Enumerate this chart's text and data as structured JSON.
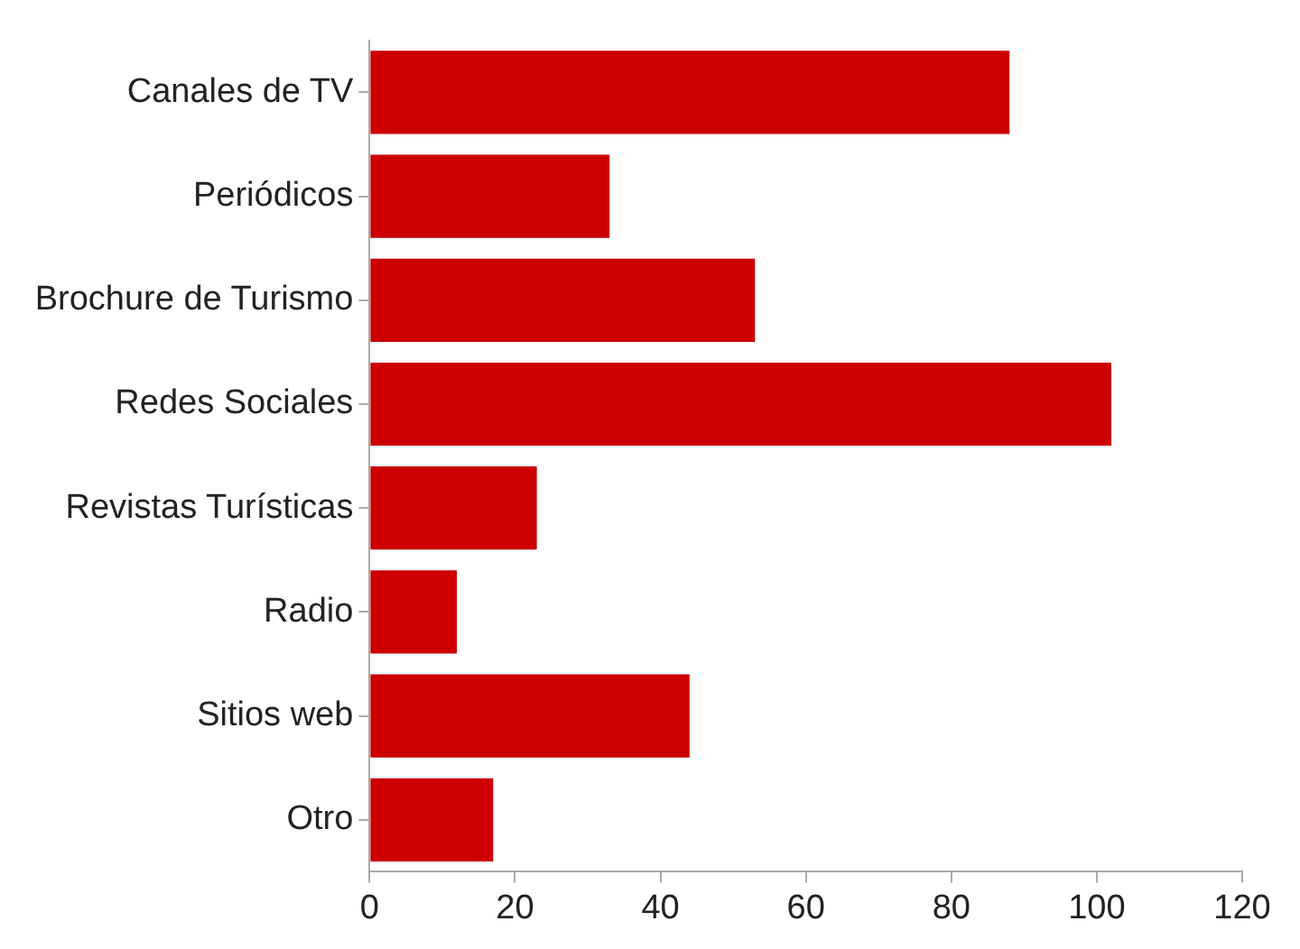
{
  "chart_data": {
    "type": "bar",
    "orientation": "horizontal",
    "categories": [
      "Canales de TV",
      "Periódicos",
      "Brochure de Turismo",
      "Redes Sociales",
      "Revistas Turísticas",
      "Radio",
      "Sitios web",
      "Otro"
    ],
    "values": [
      88,
      33,
      53,
      102,
      23,
      12,
      44,
      17
    ],
    "color": "#cc0000",
    "xlim": [
      0,
      120
    ],
    "xticks": [
      0,
      20,
      40,
      60,
      80,
      100,
      120
    ],
    "grid": false,
    "legend": false
  }
}
